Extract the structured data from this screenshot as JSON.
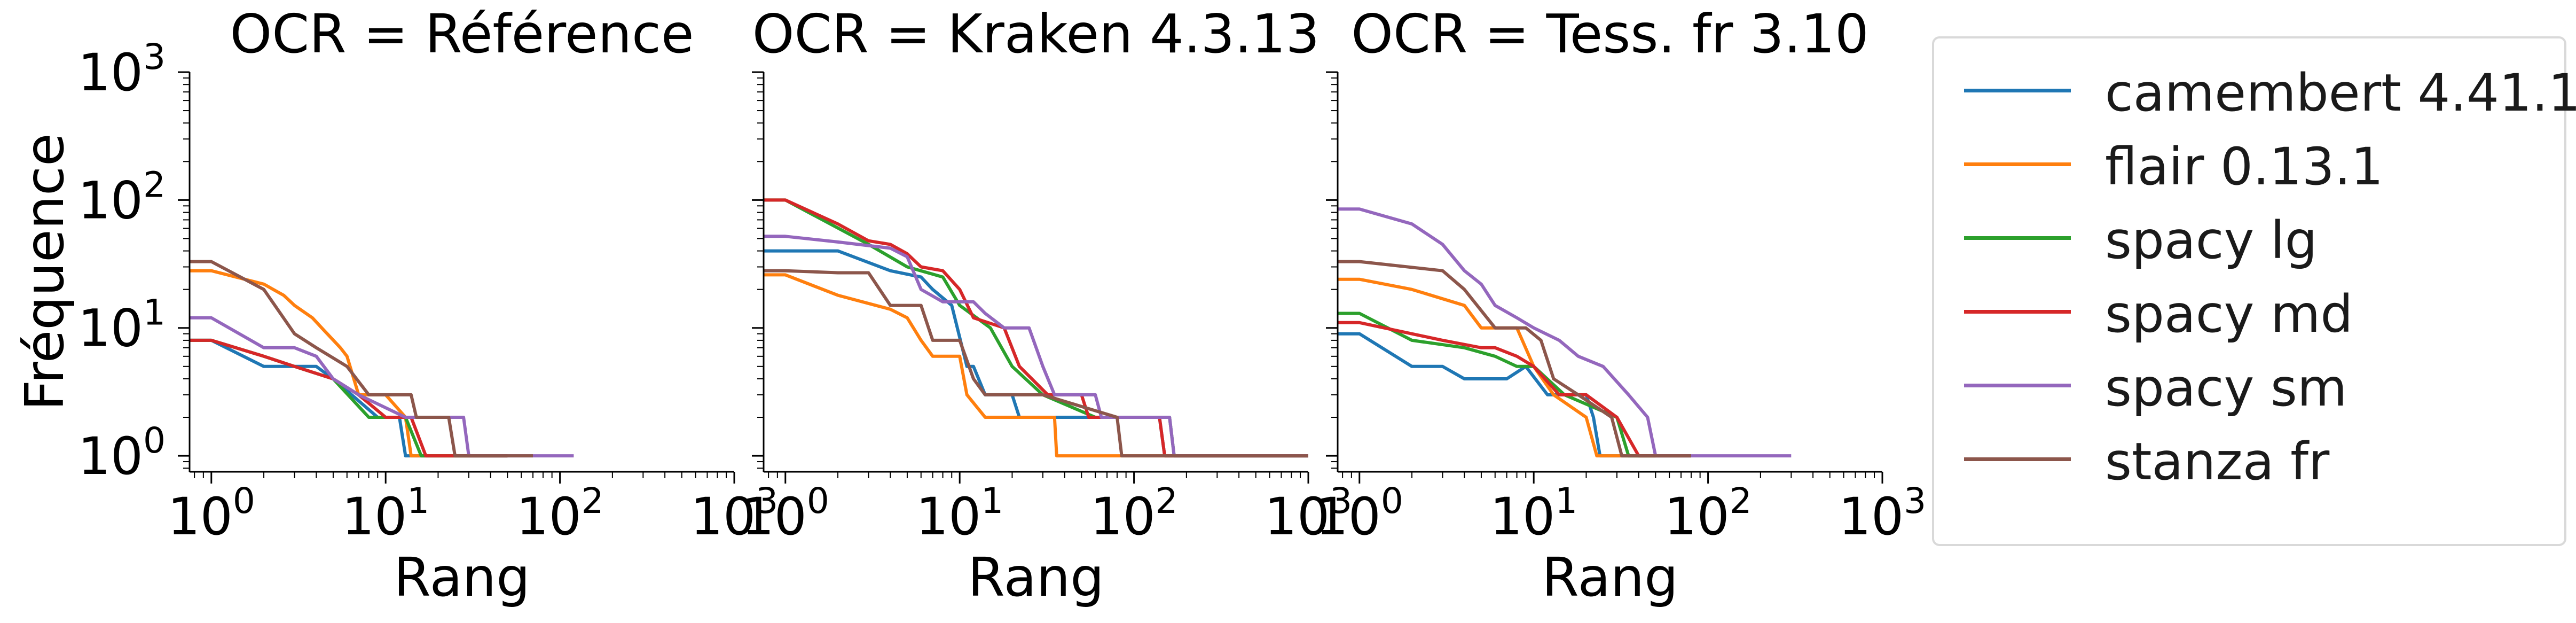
{
  "chart_data": [
    {
      "type": "line",
      "title": "OCR = Référence",
      "xlabel": "Rang",
      "ylabel": "Fréquence",
      "xscale": "log",
      "yscale": "log",
      "xlim": [
        0.75,
        1000
      ],
      "ylim": [
        0.75,
        1000
      ],
      "xticklabels": [
        "10^0",
        "10^1",
        "10^2",
        "10^3"
      ],
      "yticklabels": [
        "10^0",
        "10^1",
        "10^2",
        "10^3"
      ],
      "series": [
        {
          "name": "camembert 4.41.1",
          "points": [
            [
              0.75,
              8
            ],
            [
              1,
              8
            ],
            [
              2,
              5
            ],
            [
              4,
              5
            ],
            [
              5,
              4
            ],
            [
              9,
              2
            ],
            [
              12,
              2
            ],
            [
              13,
              1
            ],
            [
              50,
              1
            ]
          ]
        },
        {
          "name": "flair 0.13.1",
          "points": [
            [
              0.75,
              28
            ],
            [
              1,
              28
            ],
            [
              2,
              22
            ],
            [
              2.6,
              18
            ],
            [
              3,
              15
            ],
            [
              3.8,
              12
            ],
            [
              4.3,
              10
            ],
            [
              5.5,
              7
            ],
            [
              6,
              6
            ],
            [
              7,
              3
            ],
            [
              10,
              3
            ],
            [
              13,
              2
            ],
            [
              14,
              1
            ],
            [
              50,
              1
            ]
          ]
        },
        {
          "name": "spacy lg",
          "points": [
            [
              0.75,
              8
            ],
            [
              1,
              8
            ],
            [
              2,
              6
            ],
            [
              3,
              5
            ],
            [
              5,
              4
            ],
            [
              8,
              2
            ],
            [
              13,
              2
            ],
            [
              16,
              1
            ],
            [
              50,
              1
            ]
          ]
        },
        {
          "name": "spacy md",
          "points": [
            [
              0.75,
              8
            ],
            [
              1,
              8
            ],
            [
              2,
              6
            ],
            [
              3,
              5
            ],
            [
              5,
              4
            ],
            [
              7,
              3
            ],
            [
              10,
              2
            ],
            [
              14,
              2
            ],
            [
              17,
              1
            ],
            [
              50,
              1
            ]
          ]
        },
        {
          "name": "spacy sm",
          "points": [
            [
              0.75,
              12
            ],
            [
              1,
              12
            ],
            [
              2,
              7
            ],
            [
              3,
              7
            ],
            [
              4,
              6
            ],
            [
              5,
              4
            ],
            [
              7,
              3
            ],
            [
              13,
              2
            ],
            [
              28,
              2
            ],
            [
              30,
              1
            ],
            [
              120,
              1
            ]
          ]
        },
        {
          "name": "stanza fr",
          "points": [
            [
              0.75,
              33
            ],
            [
              1,
              33
            ],
            [
              2,
              20
            ],
            [
              3,
              9
            ],
            [
              4,
              7
            ],
            [
              6,
              5
            ],
            [
              8,
              3
            ],
            [
              14,
              3
            ],
            [
              15,
              2
            ],
            [
              23,
              2
            ],
            [
              25,
              1
            ],
            [
              70,
              1
            ]
          ]
        }
      ]
    },
    {
      "type": "line",
      "title": "OCR = Kraken 4.3.13",
      "xlabel": "Rang",
      "xscale": "log",
      "yscale": "log",
      "xlim": [
        0.75,
        1000
      ],
      "ylim": [
        0.75,
        1000
      ],
      "xticklabels": [
        "10^0",
        "10^1",
        "10^2",
        "10^3"
      ],
      "series": [
        {
          "name": "camembert 4.41.1",
          "points": [
            [
              0.75,
              40
            ],
            [
              2,
              40
            ],
            [
              4,
              28
            ],
            [
              6,
              25
            ],
            [
              7,
              20
            ],
            [
              9,
              15
            ],
            [
              11,
              5
            ],
            [
              12,
              5
            ],
            [
              14,
              3
            ],
            [
              20,
              3
            ],
            [
              22,
              2
            ],
            [
              140,
              2
            ],
            [
              150,
              1
            ],
            [
              1000,
              1
            ]
          ]
        },
        {
          "name": "flair 0.13.1",
          "points": [
            [
              0.75,
              26
            ],
            [
              1,
              26
            ],
            [
              2,
              18
            ],
            [
              4,
              14
            ],
            [
              5,
              12
            ],
            [
              6,
              8
            ],
            [
              7,
              6
            ],
            [
              10,
              6
            ],
            [
              11,
              3
            ],
            [
              14,
              2
            ],
            [
              35,
              2
            ],
            [
              36,
              1
            ],
            [
              1000,
              1
            ]
          ]
        },
        {
          "name": "spacy lg",
          "points": [
            [
              0.75,
              100
            ],
            [
              1,
              100
            ],
            [
              3,
              45
            ],
            [
              5,
              30
            ],
            [
              8,
              25
            ],
            [
              10,
              15
            ],
            [
              15,
              10
            ],
            [
              20,
              5
            ],
            [
              30,
              3
            ],
            [
              60,
              2
            ],
            [
              160,
              2
            ],
            [
              170,
              1
            ],
            [
              1000,
              1
            ]
          ]
        },
        {
          "name": "spacy md",
          "points": [
            [
              0.75,
              100
            ],
            [
              1,
              100
            ],
            [
              2,
              65
            ],
            [
              3,
              48
            ],
            [
              4,
              45
            ],
            [
              5,
              38
            ],
            [
              6,
              30
            ],
            [
              8,
              28
            ],
            [
              10,
              20
            ],
            [
              12,
              12
            ],
            [
              18,
              10
            ],
            [
              22,
              5
            ],
            [
              32,
              3
            ],
            [
              50,
              3
            ],
            [
              55,
              2
            ],
            [
              140,
              2
            ],
            [
              150,
              1
            ],
            [
              1000,
              1
            ]
          ]
        },
        {
          "name": "spacy sm",
          "points": [
            [
              0.75,
              52
            ],
            [
              1,
              52
            ],
            [
              2,
              47
            ],
            [
              4,
              42
            ],
            [
              5,
              36
            ],
            [
              6,
              20
            ],
            [
              8,
              16
            ],
            [
              12,
              16
            ],
            [
              14,
              13
            ],
            [
              18,
              10
            ],
            [
              25,
              10
            ],
            [
              30,
              5
            ],
            [
              35,
              3
            ],
            [
              60,
              3
            ],
            [
              65,
              2
            ],
            [
              160,
              2
            ],
            [
              170,
              1
            ],
            [
              1000,
              1
            ]
          ]
        },
        {
          "name": "stanza fr",
          "points": [
            [
              0.75,
              28
            ],
            [
              1,
              28
            ],
            [
              2,
              27
            ],
            [
              3,
              27
            ],
            [
              4,
              15
            ],
            [
              6,
              15
            ],
            [
              7,
              8
            ],
            [
              10,
              8
            ],
            [
              12,
              4
            ],
            [
              14,
              3
            ],
            [
              30,
              3
            ],
            [
              80,
              2
            ],
            [
              85,
              1
            ],
            [
              1000,
              1
            ]
          ]
        }
      ]
    },
    {
      "type": "line",
      "title": "OCR = Tess. fr 3.10",
      "xlabel": "Rang",
      "xscale": "log",
      "yscale": "log",
      "xlim": [
        0.75,
        1000
      ],
      "ylim": [
        0.75,
        1000
      ],
      "xticklabels": [
        "10^0",
        "10^1",
        "10^2",
        "10^3"
      ],
      "series": [
        {
          "name": "camembert 4.41.1",
          "points": [
            [
              0.75,
              9
            ],
            [
              1,
              9
            ],
            [
              2,
              5
            ],
            [
              3,
              5
            ],
            [
              4,
              4
            ],
            [
              7,
              4
            ],
            [
              9,
              5
            ],
            [
              12,
              3
            ],
            [
              20,
              3
            ],
            [
              22,
              2
            ],
            [
              24,
              1
            ],
            [
              50,
              1
            ]
          ]
        },
        {
          "name": "flair 0.13.1",
          "points": [
            [
              0.75,
              24
            ],
            [
              1,
              24
            ],
            [
              2,
              20
            ],
            [
              4,
              15
            ],
            [
              5,
              10
            ],
            [
              8,
              10
            ],
            [
              10,
              5
            ],
            [
              13,
              3
            ],
            [
              20,
              2
            ],
            [
              23,
              1
            ],
            [
              50,
              1
            ]
          ]
        },
        {
          "name": "spacy lg",
          "points": [
            [
              0.75,
              13
            ],
            [
              1,
              13
            ],
            [
              2,
              8
            ],
            [
              4,
              7
            ],
            [
              6,
              6
            ],
            [
              8,
              5
            ],
            [
              10,
              5
            ],
            [
              15,
              3
            ],
            [
              30,
              2
            ],
            [
              35,
              1
            ],
            [
              80,
              1
            ]
          ]
        },
        {
          "name": "spacy md",
          "points": [
            [
              0.75,
              11
            ],
            [
              1,
              11
            ],
            [
              3,
              8
            ],
            [
              5,
              7
            ],
            [
              6,
              7
            ],
            [
              8,
              6
            ],
            [
              10,
              5
            ],
            [
              14,
              3
            ],
            [
              20,
              3
            ],
            [
              30,
              2
            ],
            [
              40,
              1
            ],
            [
              80,
              1
            ]
          ]
        },
        {
          "name": "spacy sm",
          "points": [
            [
              0.75,
              85
            ],
            [
              1,
              85
            ],
            [
              2,
              65
            ],
            [
              3,
              45
            ],
            [
              4,
              28
            ],
            [
              5,
              22
            ],
            [
              6,
              15
            ],
            [
              8,
              12
            ],
            [
              10,
              10
            ],
            [
              14,
              8
            ],
            [
              18,
              6
            ],
            [
              25,
              5
            ],
            [
              35,
              3
            ],
            [
              45,
              2
            ],
            [
              50,
              1
            ],
            [
              300,
              1
            ]
          ]
        },
        {
          "name": "stanza fr",
          "points": [
            [
              0.75,
              33
            ],
            [
              1,
              33
            ],
            [
              3,
              28
            ],
            [
              4,
              20
            ],
            [
              6,
              10
            ],
            [
              9,
              10
            ],
            [
              11,
              8
            ],
            [
              13,
              4
            ],
            [
              18,
              3
            ],
            [
              28,
              2
            ],
            [
              32,
              1
            ],
            [
              80,
              1
            ]
          ]
        }
      ]
    }
  ],
  "legend": {
    "placement": "right",
    "entries": [
      {
        "label": "camembert 4.41.1",
        "color": "#1f77b4"
      },
      {
        "label": "flair 0.13.1",
        "color": "#ff7f0e"
      },
      {
        "label": "spacy lg",
        "color": "#2ca02c"
      },
      {
        "label": "spacy md",
        "color": "#d62728"
      },
      {
        "label": "spacy sm",
        "color": "#9467bd"
      },
      {
        "label": "stanza fr",
        "color": "#8c564b"
      }
    ]
  }
}
